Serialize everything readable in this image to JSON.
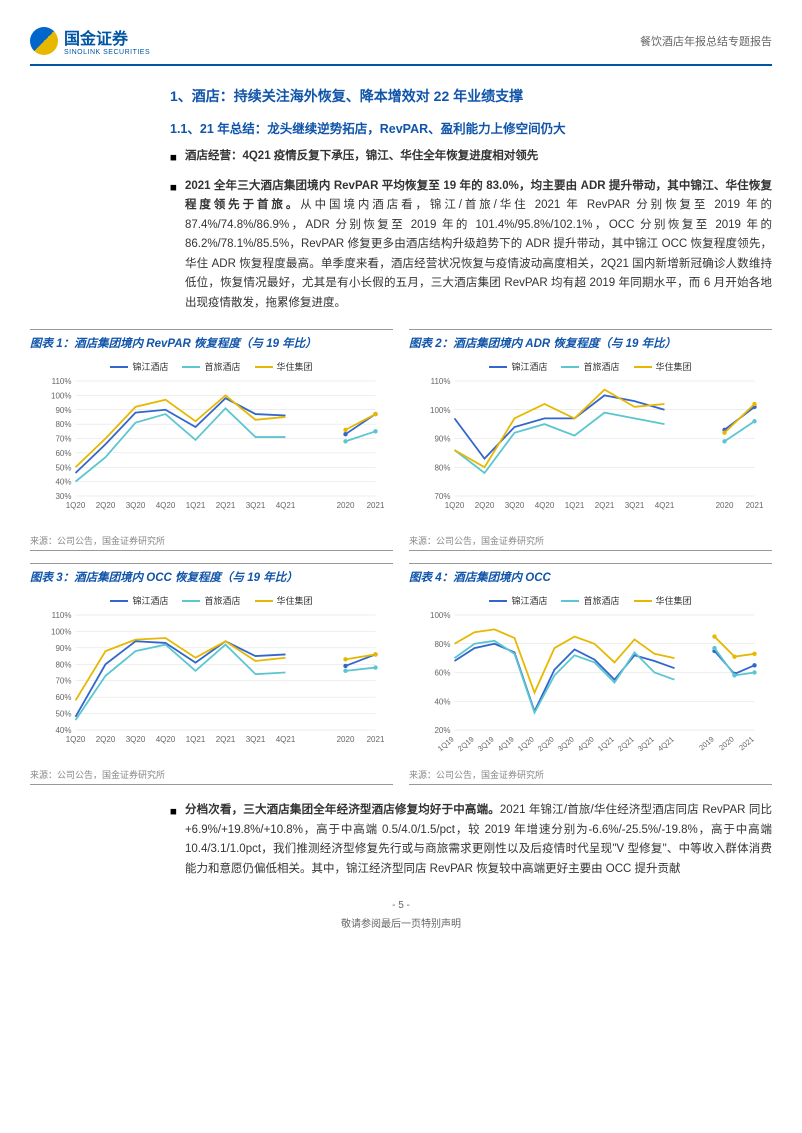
{
  "header": {
    "logo_cn": "国金证券",
    "logo_en": "SINOLINK SECURITIES",
    "right": "餐饮酒店年报总结专题报告"
  },
  "h1": "1、酒店：持续关注海外恢复、降本增效对 22 年业绩支撑",
  "h2": "1.1、21 年总结：龙头继续逆势拓店，RevPAR、盈利能力上修空间仍大",
  "bullet1": "酒店经营：4Q21 疫情反复下承压，锦江、华住全年恢复进度相对领先",
  "bullet2_bold": "2021 全年三大酒店集团境内 RevPAR 平均恢复至 19 年的 83.0%，均主要由 ADR 提升带动，其中锦江、华住恢复程度领先于首旅。",
  "bullet2_rest": "从中国境内酒店看，锦江/首旅/华住 2021 年 RevPAR 分别恢复至 2019 年的 87.4%/74.8%/86.9%，ADR 分别恢复至 2019 年的 101.4%/95.8%/102.1%，OCC 分别恢复至 2019 年的 86.2%/78.1%/85.5%，RevPAR 修复更多由酒店结构升级趋势下的 ADR 提升带动，其中锦江 OCC 恢复程度领先，华住 ADR 恢复程度最高。单季度来看，酒店经营状况恢复与疫情波动高度相关，2Q21 国内新增新冠确诊人数维持低位，恢复情况最好，尤其是有小长假的五月，三大酒店集团 RevPAR 均有超 2019 年同期水平，而 6 月开始各地出现疫情散发，拖累修复进度。",
  "bullet3_bold": "分档次看，三大酒店集团全年经济型酒店修复均好于中高端。",
  "bullet3_rest": "2021 年锦江/首旅/华住经济型酒店同店 RevPAR 同比+6.9%/+19.8%/+10.8%，高于中高端 0.5/4.0/1.5/pct，较 2019 年增速分别为-6.6%/-25.5%/-19.8%，高于中高端 10.4/3.1/1.0pct，我们推测经济型修复先行或与商旅需求更刚性以及后疫情时代呈现\"V 型修复\"、中等收入群体消费能力和意愿仍偏低相关。其中，锦江经济型同店 RevPAR 恢复较中高端更好主要由 OCC 提升贡献",
  "legend": {
    "s1": "锦江酒店",
    "s2": "首旅酒店",
    "s3": "华住集团"
  },
  "colors": {
    "s1": "#3366cc",
    "s2": "#5cc6d0",
    "s3": "#e6b800",
    "grid": "#dddddd",
    "axis": "#666666"
  },
  "source": "来源：公司公告，国金证券研究所",
  "charts": [
    {
      "title": "图表 1：酒店集团境内 RevPAR 恢复程度（与 19 年比）",
      "ylim": [
        30,
        110
      ],
      "ytick": 10,
      "ysuffix": "%",
      "xlabels": [
        "1Q20",
        "2Q20",
        "3Q20",
        "4Q20",
        "1Q21",
        "2Q21",
        "3Q21",
        "4Q21",
        "",
        "2020",
        "2021"
      ],
      "gap_after": 7,
      "series": {
        "s1": [
          46,
          66,
          88,
          90,
          78,
          98,
          87,
          86,
          null,
          73,
          87
        ],
        "s2": [
          40,
          57,
          81,
          87,
          69,
          91,
          71,
          71,
          null,
          68,
          75
        ],
        "s3": [
          50,
          70,
          92,
          97,
          82,
          100,
          83,
          85,
          null,
          76,
          87
        ]
      }
    },
    {
      "title": "图表 2：酒店集团境内 ADR 恢复程度（与 19 年比）",
      "ylim": [
        70,
        110
      ],
      "ytick": 10,
      "ysuffix": "%",
      "xlabels": [
        "1Q20",
        "2Q20",
        "3Q20",
        "4Q20",
        "1Q21",
        "2Q21",
        "3Q21",
        "4Q21",
        "",
        "2020",
        "2021"
      ],
      "gap_after": 7,
      "series": {
        "s1": [
          97,
          83,
          94,
          97,
          97,
          105,
          103,
          100,
          null,
          93,
          101
        ],
        "s2": [
          86,
          78,
          92,
          95,
          91,
          99,
          97,
          95,
          null,
          89,
          96
        ],
        "s3": [
          86,
          80,
          97,
          102,
          97,
          107,
          101,
          102,
          null,
          92,
          102
        ]
      }
    },
    {
      "title": "图表 3：酒店集团境内 OCC 恢复程度（与 19 年比）",
      "ylim": [
        40,
        110
      ],
      "ytick": 10,
      "ysuffix": "%",
      "xlabels": [
        "1Q20",
        "2Q20",
        "3Q20",
        "4Q20",
        "1Q21",
        "2Q21",
        "3Q21",
        "4Q21",
        "",
        "2020",
        "2021"
      ],
      "gap_after": 7,
      "series": {
        "s1": [
          48,
          80,
          94,
          93,
          81,
          94,
          85,
          86,
          null,
          79,
          86
        ],
        "s2": [
          46,
          73,
          88,
          92,
          76,
          92,
          74,
          75,
          null,
          76,
          78
        ],
        "s3": [
          58,
          88,
          95,
          96,
          84,
          94,
          82,
          84,
          null,
          83,
          86
        ]
      }
    },
    {
      "title": "图表 4：酒店集团境内 OCC",
      "ylim": [
        20,
        100
      ],
      "ytick": 20,
      "ysuffix": "%",
      "xlabels": [
        "1Q19",
        "2Q19",
        "3Q19",
        "4Q19",
        "1Q20",
        "2Q20",
        "3Q20",
        "4Q20",
        "1Q21",
        "2Q21",
        "3Q21",
        "4Q21",
        "",
        "2019",
        "2020",
        "2021"
      ],
      "gap_after": 11,
      "rotate": true,
      "series": {
        "s1": [
          68,
          77,
          80,
          74,
          33,
          62,
          76,
          69,
          55,
          72,
          68,
          63,
          null,
          75,
          59,
          65
        ],
        "s2": [
          70,
          80,
          82,
          73,
          32,
          58,
          72,
          67,
          53,
          74,
          60,
          55,
          null,
          77,
          58,
          60
        ],
        "s3": [
          80,
          88,
          90,
          84,
          46,
          77,
          85,
          80,
          67,
          83,
          73,
          70,
          null,
          85,
          71,
          73
        ]
      }
    }
  ],
  "footer": {
    "page": "- 5 -",
    "disclaimer": "敬请参阅最后一页特别声明"
  }
}
